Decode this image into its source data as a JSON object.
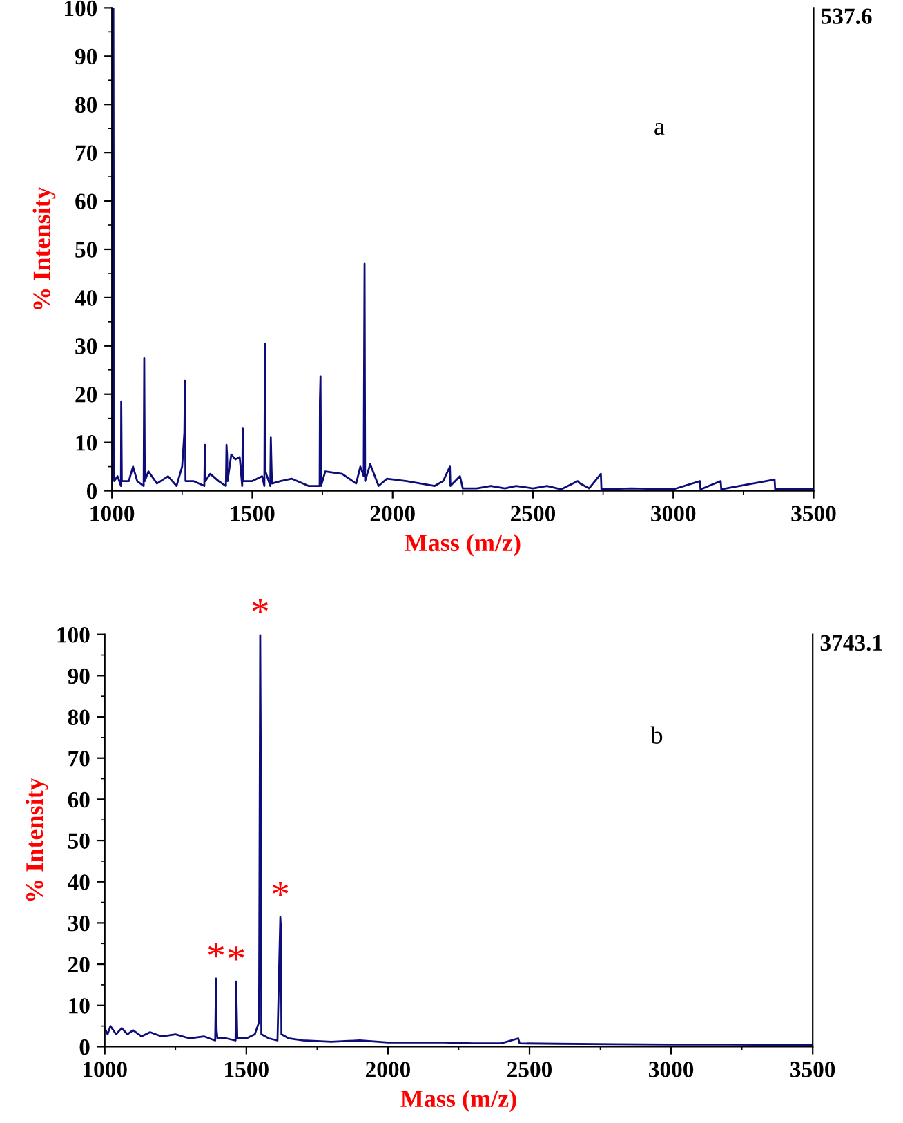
{
  "chart_data": [
    {
      "type": "line",
      "xlabel": "Mass (m/z)",
      "ylabel": "% Intensity",
      "xlim": [
        1000,
        3500
      ],
      "ylim": [
        0,
        100
      ],
      "xticks": [
        1000,
        1500,
        2000,
        2500,
        3000,
        3500
      ],
      "yticks": [
        0,
        10,
        20,
        30,
        40,
        50,
        60,
        70,
        80,
        90,
        100
      ],
      "grid": false,
      "marker": "none",
      "line_style": "solid",
      "annotations": [
        "537.6",
        "a"
      ],
      "series": [
        {
          "color": "#0d0d7a",
          "x": [
            1000,
            1004,
            1005,
            1006,
            1008,
            1020,
            1032,
            1033,
            1035,
            1060,
            1075,
            1090,
            1113,
            1115,
            1117,
            1130,
            1160,
            1200,
            1230,
            1250,
            1258,
            1260,
            1262,
            1290,
            1329,
            1331,
            1333,
            1350,
            1380,
            1406,
            1408,
            1410,
            1412,
            1425,
            1440,
            1455,
            1464,
            1466,
            1468,
            1500,
            1535,
            1543,
            1545,
            1547,
            1564,
            1566,
            1568,
            1570,
            1600,
            1640,
            1700,
            1740,
            1741,
            1743,
            1745,
            1760,
            1820,
            1870,
            1885,
            1897,
            1898,
            1900,
            1902,
            1920,
            1950,
            1980,
            2050,
            2100,
            2150,
            2180,
            2204,
            2206,
            2240,
            2250,
            2300,
            2350,
            2400,
            2440,
            2500,
            2550,
            2600,
            2660,
            2668,
            2700,
            2742,
            2744,
            2850,
            3000,
            3095,
            3097,
            3169,
            3171,
            3361,
            3363,
            3500
          ],
          "values": [
            1,
            7,
            100,
            61,
            2,
            3,
            1,
            18.5,
            2,
            2,
            5,
            2,
            1,
            27.5,
            2,
            4,
            1.5,
            3,
            1,
            5,
            12,
            22.8,
            2,
            2,
            1,
            9.5,
            2,
            3.5,
            2,
            1,
            9.5,
            7.5,
            2,
            7.5,
            6.5,
            7,
            1,
            13,
            2,
            2,
            3,
            1,
            30.5,
            4,
            1,
            11,
            6,
            1.5,
            2,
            2.5,
            1,
            1,
            18.7,
            23.7,
            1,
            4,
            3.5,
            1.5,
            5,
            3,
            20,
            47,
            2,
            5.5,
            1,
            2.5,
            2,
            1.5,
            1,
            2,
            5,
            1,
            3,
            0.5,
            0.5,
            1,
            0.5,
            1,
            0.5,
            1,
            0.3,
            2,
            1.5,
            0.5,
            3.5,
            0.3,
            0.5,
            0.3,
            2,
            0.3,
            2,
            0.3,
            2.3,
            0.3,
            0.3
          ]
        }
      ]
    },
    {
      "type": "line",
      "xlabel": "Mass (m/z)",
      "ylabel": "% Intensity",
      "xlim": [
        1000,
        3500
      ],
      "ylim": [
        0,
        100
      ],
      "xticks": [
        1000,
        1500,
        2000,
        2500,
        3000,
        3500
      ],
      "yticks": [
        0,
        10,
        20,
        30,
        40,
        50,
        60,
        70,
        80,
        90,
        100
      ],
      "grid": false,
      "marker": "none",
      "line_style": "solid",
      "annotations": [
        "3743.1",
        "b",
        {
          "text": "*",
          "x": 1393,
          "y": 16.5
        },
        {
          "text": "*",
          "x": 1464,
          "y": 15.8
        },
        {
          "text": "*",
          "x": 1549,
          "y": 100
        },
        {
          "text": "*",
          "x": 1620,
          "y": 31.4
        }
      ],
      "series": [
        {
          "color": "#0d0d7a",
          "x": [
            1000,
            1010,
            1020,
            1040,
            1060,
            1080,
            1100,
            1130,
            1160,
            1200,
            1250,
            1300,
            1350,
            1390,
            1393,
            1395,
            1398,
            1430,
            1462,
            1464,
            1466,
            1468,
            1500,
            1530,
            1545,
            1549,
            1551,
            1553,
            1580,
            1610,
            1620,
            1622,
            1624,
            1650,
            1700,
            1800,
            1900,
            2000,
            2100,
            2200,
            2300,
            2400,
            2460,
            2465,
            2600,
            2800,
            3000,
            3200,
            3500
          ],
          "values": [
            4.5,
            3,
            5,
            3,
            4.5,
            3,
            4,
            2.5,
            3.5,
            2.5,
            3,
            2,
            2.5,
            1.5,
            16.5,
            4,
            2,
            2,
            1.5,
            15.8,
            9,
            2,
            2,
            3,
            6,
            100,
            70.7,
            3,
            2,
            1.5,
            31.4,
            29,
            3,
            2,
            1.5,
            1.2,
            1.5,
            1,
            1,
            1,
            0.8,
            0.8,
            2,
            0.8,
            0.7,
            0.6,
            0.5,
            0.5,
            0.4
          ]
        }
      ]
    }
  ]
}
